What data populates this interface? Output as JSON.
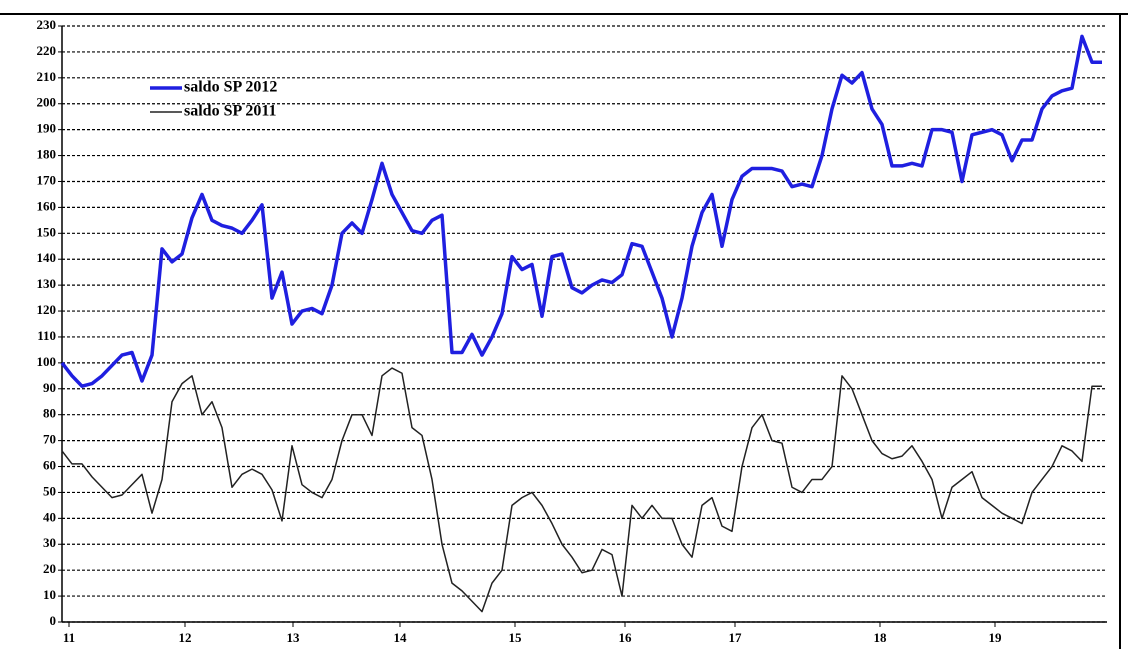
{
  "chart_data": {
    "type": "line",
    "x": [
      0,
      1,
      2,
      3,
      4,
      5,
      6,
      7,
      8,
      9,
      10,
      11,
      12,
      13,
      14,
      15,
      16,
      17,
      18,
      19,
      20,
      21,
      22,
      23,
      24,
      25,
      26,
      27,
      28,
      29,
      30,
      31,
      32,
      33,
      34,
      35,
      36,
      37,
      38,
      39,
      40,
      41,
      42,
      43,
      44,
      45,
      46,
      47,
      48,
      49,
      50,
      51,
      52,
      53,
      54,
      55,
      56,
      57,
      58,
      59,
      60,
      61,
      62,
      63,
      64,
      65,
      66,
      67,
      68,
      69,
      70,
      71,
      72,
      73,
      74,
      75,
      76,
      77,
      78,
      79,
      80,
      81,
      82,
      83,
      84,
      85,
      86,
      87,
      88,
      89,
      90,
      91,
      92,
      93,
      94,
      95,
      96,
      97,
      98,
      99,
      100,
      101,
      102,
      103,
      104
    ],
    "series": [
      {
        "name": "saldo SP 2012",
        "color": "#1f1fe0",
        "values": [
          100,
          95,
          91,
          92,
          95,
          99,
          103,
          104,
          93,
          103,
          144,
          139,
          142,
          156,
          165,
          155,
          153,
          152,
          150,
          155,
          161,
          125,
          135,
          115,
          120,
          121,
          119,
          130,
          150,
          154,
          150,
          163,
          177,
          165,
          158,
          151,
          150,
          155,
          157,
          104,
          104,
          111,
          103,
          110,
          119,
          141,
          136,
          138,
          118,
          141,
          142,
          129,
          127,
          130,
          132,
          131,
          134,
          146,
          145,
          135,
          125,
          110,
          125,
          145,
          158,
          165,
          145,
          163,
          172,
          175,
          175,
          175,
          174,
          168,
          169,
          168,
          180,
          198,
          211,
          208,
          212,
          198,
          192,
          176,
          176,
          177,
          176,
          190,
          190,
          189,
          170,
          188,
          189,
          190,
          188,
          178,
          186,
          186,
          198,
          203,
          205,
          206,
          226,
          216,
          216
        ]
      },
      {
        "name": "saldo SP 2011",
        "color": "#222222",
        "values": [
          66,
          61,
          61,
          56,
          52,
          48,
          49,
          53,
          57,
          42,
          55,
          85,
          92,
          95,
          80,
          85,
          75,
          52,
          57,
          59,
          57,
          51,
          39,
          68,
          53,
          50,
          48,
          55,
          70,
          80,
          80,
          72,
          95,
          98,
          96,
          75,
          72,
          55,
          30,
          15,
          12,
          8,
          4,
          15,
          20,
          45,
          48,
          50,
          45,
          38,
          30,
          25,
          19,
          20,
          28,
          26,
          10,
          45,
          40,
          45,
          40,
          40,
          30,
          25,
          45,
          48,
          37,
          35,
          60,
          75,
          80,
          70,
          69,
          52,
          50,
          55,
          55,
          60,
          95,
          90,
          80,
          70,
          65,
          63,
          64,
          68,
          62,
          55,
          40,
          52,
          55,
          58,
          48,
          45,
          42,
          40,
          38,
          50,
          55,
          60,
          68,
          66,
          62,
          91,
          91
        ]
      }
    ],
    "xlim": [
      0,
      104.5
    ],
    "xticks": [
      {
        "value": 0.7,
        "label": "11"
      },
      {
        "value": 12.3,
        "label": "12"
      },
      {
        "value": 23.1,
        "label": "13"
      },
      {
        "value": 33.8,
        "label": "14"
      },
      {
        "value": 45.3,
        "label": "15"
      },
      {
        "value": 56.3,
        "label": "16"
      },
      {
        "value": 67.3,
        "label": "17"
      },
      {
        "value": 81.8,
        "label": "18"
      },
      {
        "value": 93.3,
        "label": "19"
      }
    ],
    "ylim": [
      0,
      230
    ],
    "yticks": [
      0,
      10,
      20,
      30,
      40,
      50,
      60,
      70,
      80,
      90,
      100,
      110,
      120,
      130,
      140,
      150,
      160,
      170,
      180,
      190,
      200,
      210,
      220,
      230
    ],
    "grid": true,
    "legend": "upper-left"
  }
}
